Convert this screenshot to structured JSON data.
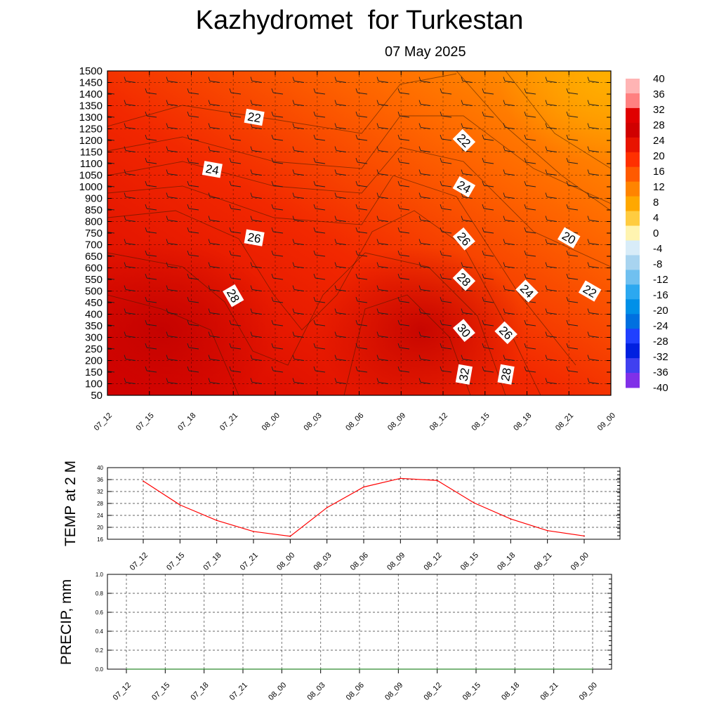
{
  "title": "Kazhydromet  for Turkestan",
  "subtitle": "07 May 2025",
  "chart_data": [
    {
      "type": "heatmap",
      "description_free": true,
      "y_tick_labels": [
        "1500",
        "1450",
        "1400",
        "1350",
        "1300",
        "1250",
        "1200",
        "1150",
        "1100",
        "1050",
        "1000",
        "900",
        "850",
        "800",
        "750",
        "700",
        "650",
        "600",
        "550",
        "500",
        "450",
        "400",
        "350",
        "300",
        "250",
        "200",
        "150",
        "100",
        "50"
      ],
      "x_tick_labels": [
        "07_12",
        "07_15",
        "07_18",
        "07_21",
        "08_00",
        "08_03",
        "08_06",
        "08_09",
        "08_12",
        "08_15",
        "08_18",
        "08_21",
        "09_00"
      ],
      "colorbar_labels": [
        "40",
        "36",
        "32",
        "28",
        "24",
        "20",
        "16",
        "12",
        "8",
        "4",
        "0",
        "-4",
        "-8",
        "-12",
        "-16",
        "-20",
        "-24",
        "-28",
        "-32",
        "-36",
        "-40"
      ],
      "contour_labels": [
        {
          "text": "22",
          "x": "07_21+",
          "y": "1300"
        },
        {
          "text": "22",
          "x": "08_12+",
          "y": "1200"
        },
        {
          "text": "24",
          "x": "07_18+",
          "y": "1075"
        },
        {
          "text": "24",
          "x": "08_12+",
          "y": "1000"
        },
        {
          "text": "26",
          "x": "07_21+",
          "y": "730"
        },
        {
          "text": "26",
          "x": "08_12+",
          "y": "725"
        },
        {
          "text": "20",
          "x": "08_21",
          "y": "730"
        },
        {
          "text": "28",
          "x": "07_21",
          "y": "480"
        },
        {
          "text": "28",
          "x": "08_12+",
          "y": "550"
        },
        {
          "text": "24",
          "x": "08_18",
          "y": "500"
        },
        {
          "text": "22",
          "x": "08_21+",
          "y": "500"
        },
        {
          "text": "30",
          "x": "08_12+",
          "y": "330"
        },
        {
          "text": "26",
          "x": "08_18-",
          "y": "320"
        },
        {
          "text": "32",
          "x": "08_12+",
          "y": "140"
        },
        {
          "text": "28",
          "x": "08_15+",
          "y": "140"
        }
      ]
    },
    {
      "type": "line",
      "ylabel": "TEMP at 2 M",
      "ylim": [
        16,
        40
      ],
      "y_tick_labels": [
        "40",
        "36",
        "32",
        "28",
        "24",
        "20",
        "16"
      ],
      "categories": [
        "07_12",
        "07_15",
        "07_18",
        "07_21",
        "08_00",
        "08_03",
        "08_06",
        "08_09",
        "08_12",
        "08_15",
        "08_18",
        "08_21",
        "09_00"
      ],
      "values": [
        35.5,
        27.5,
        22.3,
        18.6,
        17.0,
        26.6,
        33.5,
        36.4,
        35.7,
        28.2,
        22.8,
        18.9,
        17.1
      ],
      "color": "#ff0000"
    },
    {
      "type": "line",
      "ylabel": "PRECIP, mm",
      "ylim": [
        0,
        1.0
      ],
      "y_tick_labels": [
        "1.0",
        "0.8",
        "0.6",
        "0.4",
        "0.2",
        "0.0"
      ],
      "categories": [
        "07_12",
        "07_15",
        "07_18",
        "07_21",
        "08_00",
        "08_03",
        "08_06",
        "08_09",
        "08_12",
        "08_15",
        "08_18",
        "08_21",
        "09_00"
      ],
      "values": [
        0,
        0,
        0,
        0,
        0,
        0,
        0,
        0,
        0,
        0,
        0,
        0,
        0
      ],
      "color": "#2e8b2e"
    }
  ]
}
